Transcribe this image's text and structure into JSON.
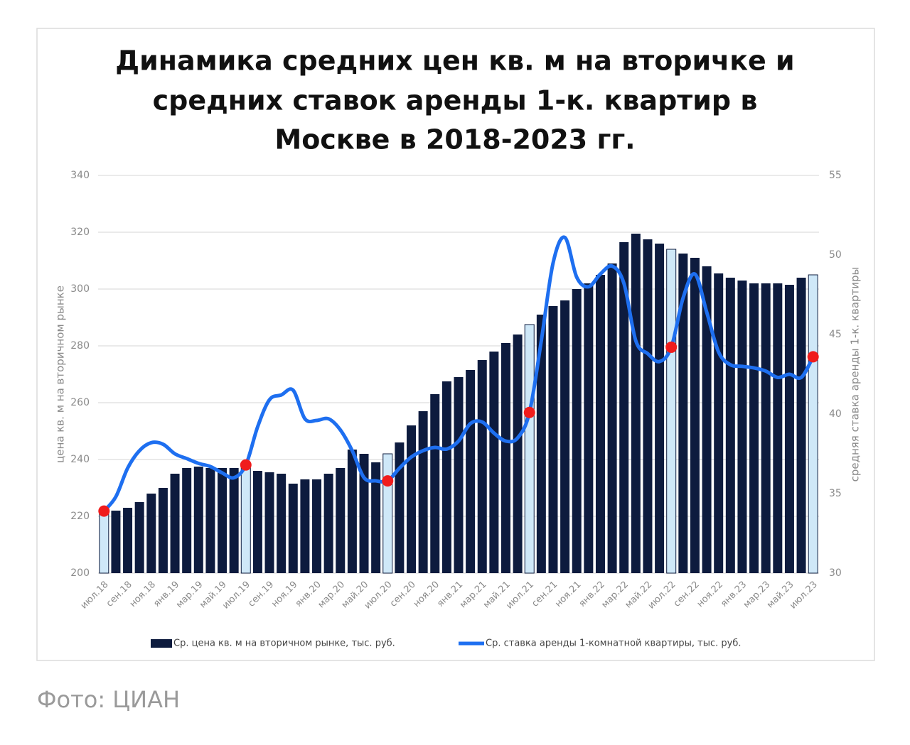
{
  "caption": "Фото: ЦИАН",
  "chart_data": {
    "type": "bar_line",
    "title": [
      "Динамика средних цен кв. м на вторичке и",
      "средних ставок аренды 1-к. квартир в",
      "Москве в 2018-2023 гг."
    ],
    "ylabel": "цена кв. м на вторичном рынке",
    "y2label": "средняя ставка аренды 1-к. квартиры",
    "categories": [
      "июл.18",
      null,
      "сен.18",
      null,
      "ноя.18",
      null,
      "янв.19",
      null,
      "мар.19",
      null,
      "май.19",
      null,
      "июл.19",
      null,
      "сен.19",
      null,
      "ноя.19",
      null,
      "янв.20",
      null,
      "мар.20",
      null,
      "май.20",
      null,
      "июл.20",
      null,
      "сен.20",
      null,
      "ноя.20",
      null,
      "янв.21",
      null,
      "мар.21",
      null,
      "май.21",
      null,
      "июл.21",
      null,
      "сен.21",
      null,
      "ноя.21",
      null,
      "янв.22",
      null,
      "мар.22",
      null,
      "май.22",
      null,
      "июл.22",
      null,
      "сен.22",
      null,
      "ноя.22",
      null,
      "янв.23",
      null,
      "мар.23",
      null,
      "май.23",
      null,
      "июл.23"
    ],
    "ylim": [
      200,
      340
    ],
    "yticks": [
      200,
      220,
      240,
      260,
      280,
      300,
      320,
      340
    ],
    "y2lim": [
      30,
      55
    ],
    "y2ticks": [
      30,
      35,
      40,
      45,
      50,
      55
    ],
    "grid": true,
    "series": [
      {
        "name": "Ср. цена кв. м на вторичном рынке, тыс. руб.",
        "kind": "bar",
        "color": "#0d1b3e",
        "colors": [
          "#cfe8f8",
          "#0d1b3e",
          "#0d1b3e",
          "#0d1b3e",
          "#0d1b3e",
          "#0d1b3e",
          "#0d1b3e",
          "#0d1b3e",
          "#0d1b3e",
          "#0d1b3e",
          "#0d1b3e",
          "#0d1b3e",
          "#cfe8f8",
          "#0d1b3e",
          "#0d1b3e",
          "#0d1b3e",
          "#0d1b3e",
          "#0d1b3e",
          "#0d1b3e",
          "#0d1b3e",
          "#0d1b3e",
          "#0d1b3e",
          "#0d1b3e",
          "#0d1b3e",
          "#cfe8f8",
          "#0d1b3e",
          "#0d1b3e",
          "#0d1b3e",
          "#0d1b3e",
          "#0d1b3e",
          "#0d1b3e",
          "#0d1b3e",
          "#0d1b3e",
          "#0d1b3e",
          "#0d1b3e",
          "#0d1b3e",
          "#cfe8f8",
          "#0d1b3e",
          "#0d1b3e",
          "#0d1b3e",
          "#0d1b3e",
          "#0d1b3e",
          "#0d1b3e",
          "#0d1b3e",
          "#0d1b3e",
          "#0d1b3e",
          "#0d1b3e",
          "#0d1b3e",
          "#cfe8f8",
          "#0d1b3e",
          "#0d1b3e",
          "#0d1b3e",
          "#0d1b3e",
          "#0d1b3e",
          "#0d1b3e",
          "#0d1b3e",
          "#0d1b3e",
          "#0d1b3e",
          "#0d1b3e",
          "#0d1b3e",
          "#cfe8f8"
        ],
        "values": [
          221,
          222,
          223,
          225,
          228,
          230,
          235,
          237,
          237.5,
          237,
          237,
          237,
          238,
          236,
          235.5,
          235,
          231.5,
          233,
          233,
          235,
          237,
          243.5,
          242,
          239,
          242,
          246,
          252,
          257,
          263,
          267.5,
          269,
          271.5,
          275,
          278,
          281,
          284,
          287.5,
          291,
          294,
          296,
          300,
          302,
          305,
          309,
          316.5,
          319.5,
          317.5,
          316,
          314,
          312.5,
          311,
          308,
          305.5,
          304,
          303,
          302,
          302,
          302,
          301.5,
          304,
          305
        ]
      },
      {
        "name": "Ср. ставка аренды 1-комнатной квартиры, тыс. руб.",
        "kind": "line",
        "axis": "y2",
        "color": "#1e6ff0",
        "marker_colors": [
          "#f01c1c",
          null,
          null,
          null,
          null,
          null,
          null,
          null,
          null,
          null,
          null,
          null,
          "#f01c1c",
          null,
          null,
          null,
          null,
          null,
          null,
          null,
          null,
          null,
          null,
          null,
          "#f01c1c",
          null,
          null,
          null,
          null,
          null,
          null,
          null,
          null,
          null,
          null,
          null,
          "#f01c1c",
          null,
          null,
          null,
          null,
          null,
          null,
          null,
          null,
          null,
          null,
          null,
          "#f01c1c",
          null,
          null,
          null,
          null,
          null,
          null,
          null,
          null,
          null,
          null,
          null,
          "#f01c1c"
        ],
        "values": [
          33.9,
          34.8,
          36.6,
          37.7,
          38.2,
          38.1,
          37.5,
          37.2,
          36.9,
          36.7,
          36.3,
          36.0,
          36.8,
          39.2,
          40.9,
          41.2,
          41.5,
          39.7,
          39.6,
          39.7,
          39.0,
          37.7,
          36.0,
          35.8,
          35.8,
          36.6,
          37.3,
          37.7,
          37.9,
          37.8,
          38.3,
          39.4,
          39.5,
          38.8,
          38.3,
          38.5,
          40.1,
          44.6,
          49.5,
          51.1,
          48.6,
          48.0,
          48.8,
          49.3,
          48.2,
          44.6,
          43.8,
          43.3,
          44.2,
          47.3,
          48.8,
          46.4,
          43.9,
          43.1,
          43.0,
          42.9,
          42.7,
          42.3,
          42.5,
          42.3,
          43.6
        ]
      }
    ]
  }
}
